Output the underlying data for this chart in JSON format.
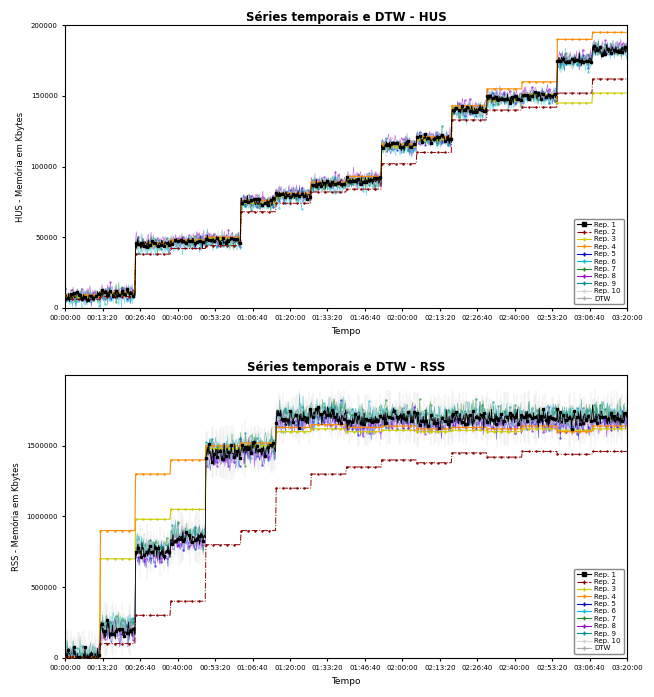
{
  "title_top": "Séries temporais e DTW - HUS",
  "title_bottom": "Séries temporais e DTW - RSS",
  "xlabel": "Tempo",
  "ylabel_top": "HUS - Memória em Kbytes",
  "ylabel_bottom": "RSS - Memória em Kbytes",
  "xtick_labels": [
    "00:00:00",
    "00:13:20",
    "00:26:40",
    "00:40:00",
    "00:53:20",
    "01:06:40",
    "01:20:00",
    "01:33:20",
    "01:46:40",
    "02:00:00",
    "02:13:20",
    "02:26:40",
    "02:40:00",
    "02:53:20",
    "03:06:40",
    "03:20:00"
  ],
  "hus_ylim": [
    0,
    200000
  ],
  "hus_yticks": [
    0,
    50000,
    100000,
    150000,
    200000
  ],
  "rss_ylim": [
    0,
    2000000
  ],
  "rss_yticks": [
    0,
    500000,
    1000000,
    1500000
  ],
  "legend_labels": [
    "Rep. 1",
    "Rep. 2",
    "Rep. 3",
    "Rep. 4",
    "Rep. 5",
    "Rep. 6",
    "Rep. 7",
    "Rep. 8",
    "Rep. 9",
    "Rep. 10",
    "DTW"
  ],
  "colors": {
    "rep1": "#000000",
    "rep2": "#8b0000",
    "rep3": "#cccc00",
    "rep4": "#ff8c00",
    "rep5": "#0000cd",
    "rep6": "#00bcd4",
    "rep7": "#228b22",
    "rep8": "#9400d3",
    "rep9": "#008b8b",
    "rep10": "#d3d3d3",
    "dtw": "#aaaaaa"
  },
  "hus_steps": [
    8000,
    10000,
    45000,
    47000,
    48000,
    75000,
    80000,
    88000,
    90000,
    115000,
    120000,
    140000,
    148000,
    150000,
    175000,
    183000
  ],
  "hus_steps_rep2": [
    6000,
    8000,
    38000,
    42000,
    44000,
    68000,
    74000,
    82000,
    84000,
    102000,
    110000,
    133000,
    140000,
    142000,
    152000,
    162000
  ],
  "hus_steps_rep3": [
    8000,
    10000,
    44000,
    47000,
    49000,
    74000,
    79000,
    87000,
    91000,
    114000,
    119000,
    141000,
    147000,
    151000,
    145000,
    152000
  ],
  "hus_steps_rep4": [
    9000,
    11000,
    46000,
    48000,
    50000,
    76000,
    81000,
    89000,
    93000,
    116000,
    121000,
    143000,
    155000,
    160000,
    190000,
    195000
  ],
  "rss_steps": [
    5000,
    200000,
    750000,
    850000,
    1450000,
    1480000,
    1700000,
    1720000,
    1680000,
    1700000,
    1680000,
    1700000,
    1690000,
    1700000,
    1680000,
    1700000
  ],
  "rss_steps_rep2": [
    5000,
    100000,
    300000,
    400000,
    800000,
    900000,
    1200000,
    1300000,
    1350000,
    1400000,
    1380000,
    1450000,
    1420000,
    1460000,
    1440000,
    1460000
  ],
  "rss_steps_rep3": [
    5000,
    700000,
    980000,
    1050000,
    1480000,
    1500000,
    1600000,
    1620000,
    1600000,
    1610000,
    1600000,
    1610000,
    1600000,
    1620000,
    1610000,
    1620000
  ],
  "rss_steps_rep4": [
    5000,
    900000,
    1300000,
    1400000,
    1500000,
    1520000,
    1630000,
    1650000,
    1630000,
    1640000,
    1620000,
    1630000,
    1620000,
    1640000,
    1600000,
    1640000
  ],
  "background_color": "#ffffff"
}
